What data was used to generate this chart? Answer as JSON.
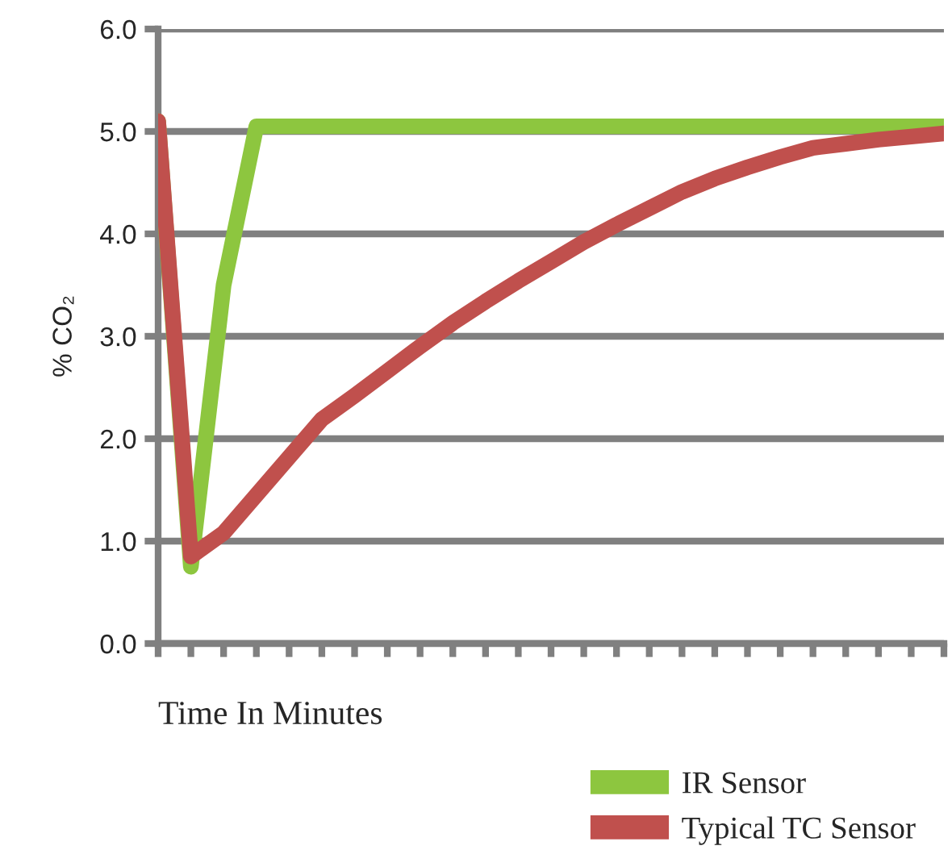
{
  "chart_data": {
    "type": "line",
    "xlabel": "Time In Minutes",
    "ylabel": "% CO₂",
    "categories": [
      null,
      null,
      null,
      null,
      null,
      null,
      null,
      null,
      null,
      null,
      null,
      null,
      null,
      null,
      null,
      null,
      null,
      null,
      null,
      null,
      null,
      null,
      null,
      null,
      null
    ],
    "ylim": [
      0,
      6
    ],
    "yticks": [
      {
        "value": 0,
        "label": "0.0"
      },
      {
        "value": 1,
        "label": "1.0"
      },
      {
        "value": 2,
        "label": "2.0"
      },
      {
        "value": 3,
        "label": "3.0"
      },
      {
        "value": 4,
        "label": "4.0"
      },
      {
        "value": 5,
        "label": "5.0"
      },
      {
        "value": 6,
        "label": "6.0"
      }
    ],
    "grid": "y",
    "legend": "bottom right",
    "marker": "none",
    "line_style": "solid",
    "series": [
      {
        "name": "IR Sensor",
        "color": "#8dc63f",
        "values": [
          5.1,
          0.75,
          3.5,
          5.05,
          5.05,
          5.05,
          5.05,
          5.05,
          5.05,
          5.05,
          5.05,
          5.05,
          5.05,
          5.05,
          5.05,
          5.05,
          5.05,
          5.05,
          5.05,
          5.05,
          5.05,
          5.05,
          5.05,
          5.05,
          5.05
        ]
      },
      {
        "name": "Typical TC Sensor",
        "color": "#c0504d",
        "values": [
          5.1,
          0.85,
          1.08,
          1.45,
          1.82,
          2.19,
          2.42,
          2.66,
          2.9,
          3.13,
          3.34,
          3.54,
          3.73,
          3.92,
          4.09,
          4.25,
          4.41,
          4.54,
          4.65,
          4.75,
          4.84,
          4.88,
          4.92,
          4.95,
          4.98
        ]
      }
    ]
  }
}
